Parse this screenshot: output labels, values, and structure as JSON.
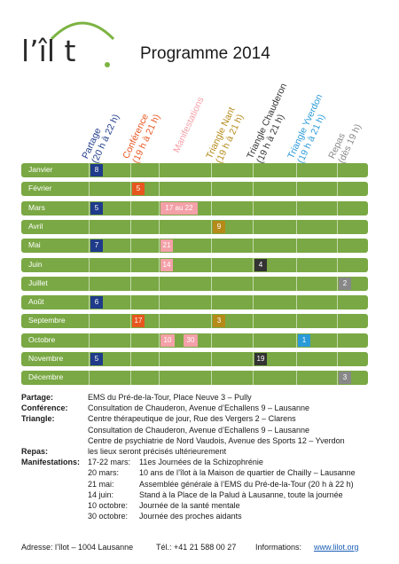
{
  "logo": {
    "text": "l’îl t",
    "arc_color": "#7cb342"
  },
  "title": "Programme 2014",
  "columns": [
    {
      "id": "partage",
      "line1": "Partage",
      "line2": "(20 h à 22 h)",
      "color": "#1f3b8a"
    },
    {
      "id": "conference",
      "line1": "Conférence",
      "line2": "(19 h à 21 h)",
      "color": "#e8561f"
    },
    {
      "id": "manifestations",
      "line1": "Manifestations",
      "line2": "",
      "color": "#f4a0a8"
    },
    {
      "id": "triangle_nant",
      "line1": "Triangle Nant",
      "line2": "(19 h à 21 h)",
      "color": "#b58a18"
    },
    {
      "id": "triangle_chauderon",
      "line1": "Triangle Chauderon",
      "line2": "(19 h à 21 h)",
      "color": "#333333"
    },
    {
      "id": "triangle_yverdon",
      "line1": "Triangle Yverdon",
      "line2": "(19 h à 21 h)",
      "color": "#2a9ad8"
    },
    {
      "id": "repas",
      "line1": "Repas",
      "line2": "(dès 19 h)",
      "color": "#888888"
    }
  ],
  "months": [
    {
      "name": "Janvier",
      "cells": [
        {
          "col": "partage",
          "text": "8"
        }
      ]
    },
    {
      "name": "Février",
      "cells": [
        {
          "col": "conference",
          "text": "5"
        }
      ]
    },
    {
      "name": "Mars",
      "cells": [
        {
          "col": "partage",
          "text": "5"
        },
        {
          "col": "manifestations",
          "text": "17 au 22",
          "wide": true
        }
      ]
    },
    {
      "name": "Avril",
      "cells": [
        {
          "col": "triangle_nant",
          "text": "9"
        }
      ]
    },
    {
      "name": "Mai",
      "cells": [
        {
          "col": "partage",
          "text": "7"
        },
        {
          "col": "manifestations",
          "text": "21"
        }
      ]
    },
    {
      "name": "Juin",
      "cells": [
        {
          "col": "manifestations",
          "text": "14"
        },
        {
          "col": "triangle_chauderon",
          "text": "4"
        }
      ]
    },
    {
      "name": "Juillet",
      "cells": [
        {
          "col": "repas",
          "text": "2"
        }
      ]
    },
    {
      "name": "Août",
      "cells": [
        {
          "col": "partage",
          "text": "6"
        }
      ]
    },
    {
      "name": "Septembre",
      "cells": [
        {
          "col": "conference",
          "text": "17"
        },
        {
          "col": "triangle_nant",
          "text": "3"
        }
      ]
    },
    {
      "name": "Octobre",
      "cells": [
        {
          "col": "manifestations",
          "text": "10"
        },
        {
          "col": "manifestations",
          "text": "30",
          "second": true
        },
        {
          "col": "triangle_yverdon",
          "text": "1"
        }
      ]
    },
    {
      "name": "Novembre",
      "cells": [
        {
          "col": "partage",
          "text": "5"
        },
        {
          "col": "triangle_chauderon",
          "text": "19"
        }
      ]
    },
    {
      "name": "Décembre",
      "cells": [
        {
          "col": "repas",
          "text": "3"
        }
      ]
    }
  ],
  "legend": [
    {
      "key": "Partage:",
      "lines": [
        {
          "date": "",
          "text": "EMS du Pré-de-la-Tour, Place Neuve 3 – Pully"
        }
      ]
    },
    {
      "key": "Conférence:",
      "lines": [
        {
          "date": "",
          "text": "Consultation de Chauderon, Avenue d’Echallens 9 – Lausanne"
        }
      ]
    },
    {
      "key": "Triangle:",
      "lines": [
        {
          "date": "",
          "text": "Centre thérapeutique de jour, Rue des Vergers 2 – Clarens"
        },
        {
          "date": "",
          "text": "Consultation de Chauderon, Avenue d’Echallens 9 – Lausanne"
        },
        {
          "date": "",
          "text": "Centre de psychiatrie de Nord Vaudois, Avenue des Sports 12 – Yverdon"
        }
      ]
    },
    {
      "key": "Repas:",
      "lines": [
        {
          "date": "",
          "text": "les lieux seront précisés ultérieurement"
        }
      ]
    },
    {
      "key": "Manifestations:",
      "lines": [
        {
          "date": "17-22 mars:",
          "text": "11es Journées de la Schizophrénie"
        },
        {
          "date": "20 mars:",
          "text": "10 ans de l’îlot à la Maison de quartier de Chailly – Lausanne"
        },
        {
          "date": "21 mai:",
          "text": "Assemblée générale à l’EMS du Pré-de-la-Tour (20 h à 22 h)"
        },
        {
          "date": "14 juin:",
          "text": "Stand à la Place de la Palud à Lausanne, toute la journée"
        },
        {
          "date": "10 octobre:",
          "text": "Journée de la santé mentale"
        },
        {
          "date": "30 octobre:",
          "text": "Journée des proches aidants"
        }
      ]
    }
  ],
  "footer": {
    "address": "Adresse: l’îlot – 1004 Lausanne",
    "phone": "Tél.: +41 21 588 00 27",
    "info_label": "Informations:",
    "url": "www.lilot.org"
  }
}
